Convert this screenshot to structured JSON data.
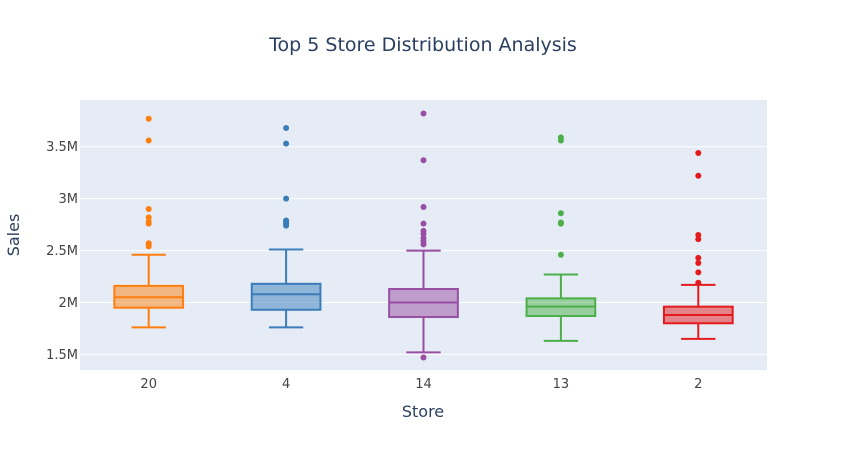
{
  "chart_data": {
    "type": "box",
    "title": "Top 5 Store Distribution Analysis",
    "xlabel": "Store",
    "ylabel": "Sales",
    "ylim": [
      1.35,
      3.95
    ],
    "y_unit": "millions",
    "yticks": [
      {
        "value": 1.5,
        "label": "1.5M"
      },
      {
        "value": 2.0,
        "label": "2M"
      },
      {
        "value": 2.5,
        "label": "2.5M"
      },
      {
        "value": 3.0,
        "label": "3M"
      },
      {
        "value": 3.5,
        "label": "3.5M"
      }
    ],
    "grid": true,
    "legend": "none",
    "categories": [
      "20",
      "4",
      "14",
      "13",
      "2"
    ],
    "boxes": [
      {
        "category": "20",
        "color": "#ff7f0e",
        "min": 1.76,
        "q1": 1.95,
        "median": 2.05,
        "q3": 2.16,
        "max": 2.46,
        "outliers": [
          2.54,
          2.56,
          2.57,
          2.76,
          2.78,
          2.82,
          2.9,
          3.56,
          3.77
        ]
      },
      {
        "category": "4",
        "color": "#3a7db9",
        "min": 1.76,
        "q1": 1.93,
        "median": 2.08,
        "q3": 2.18,
        "max": 2.51,
        "outliers": [
          2.74,
          2.76,
          2.78,
          2.79,
          3.0,
          3.53,
          3.68
        ]
      },
      {
        "category": "14",
        "color": "#984ea3",
        "min": 1.52,
        "q1": 1.86,
        "median": 2.0,
        "q3": 2.13,
        "max": 2.5,
        "outliers": [
          1.47,
          2.56,
          2.59,
          2.62,
          2.66,
          2.69,
          2.76,
          2.92,
          3.37,
          3.82
        ]
      },
      {
        "category": "13",
        "color": "#4daf4a",
        "min": 1.63,
        "q1": 1.87,
        "median": 1.96,
        "q3": 2.04,
        "max": 2.27,
        "outliers": [
          2.46,
          2.76,
          2.77,
          2.86,
          3.56,
          3.59
        ]
      },
      {
        "category": "2",
        "color": "#e41a1c",
        "min": 1.65,
        "q1": 1.8,
        "median": 1.88,
        "q3": 1.96,
        "max": 2.17,
        "outliers": [
          2.19,
          2.29,
          2.38,
          2.43,
          2.61,
          2.65,
          3.22,
          3.44
        ]
      }
    ]
  },
  "colors": {
    "plot_bg": "#e5ecf6",
    "grid": "#ffffff",
    "text": "#2a3f5f",
    "tick_text": "#444444"
  }
}
